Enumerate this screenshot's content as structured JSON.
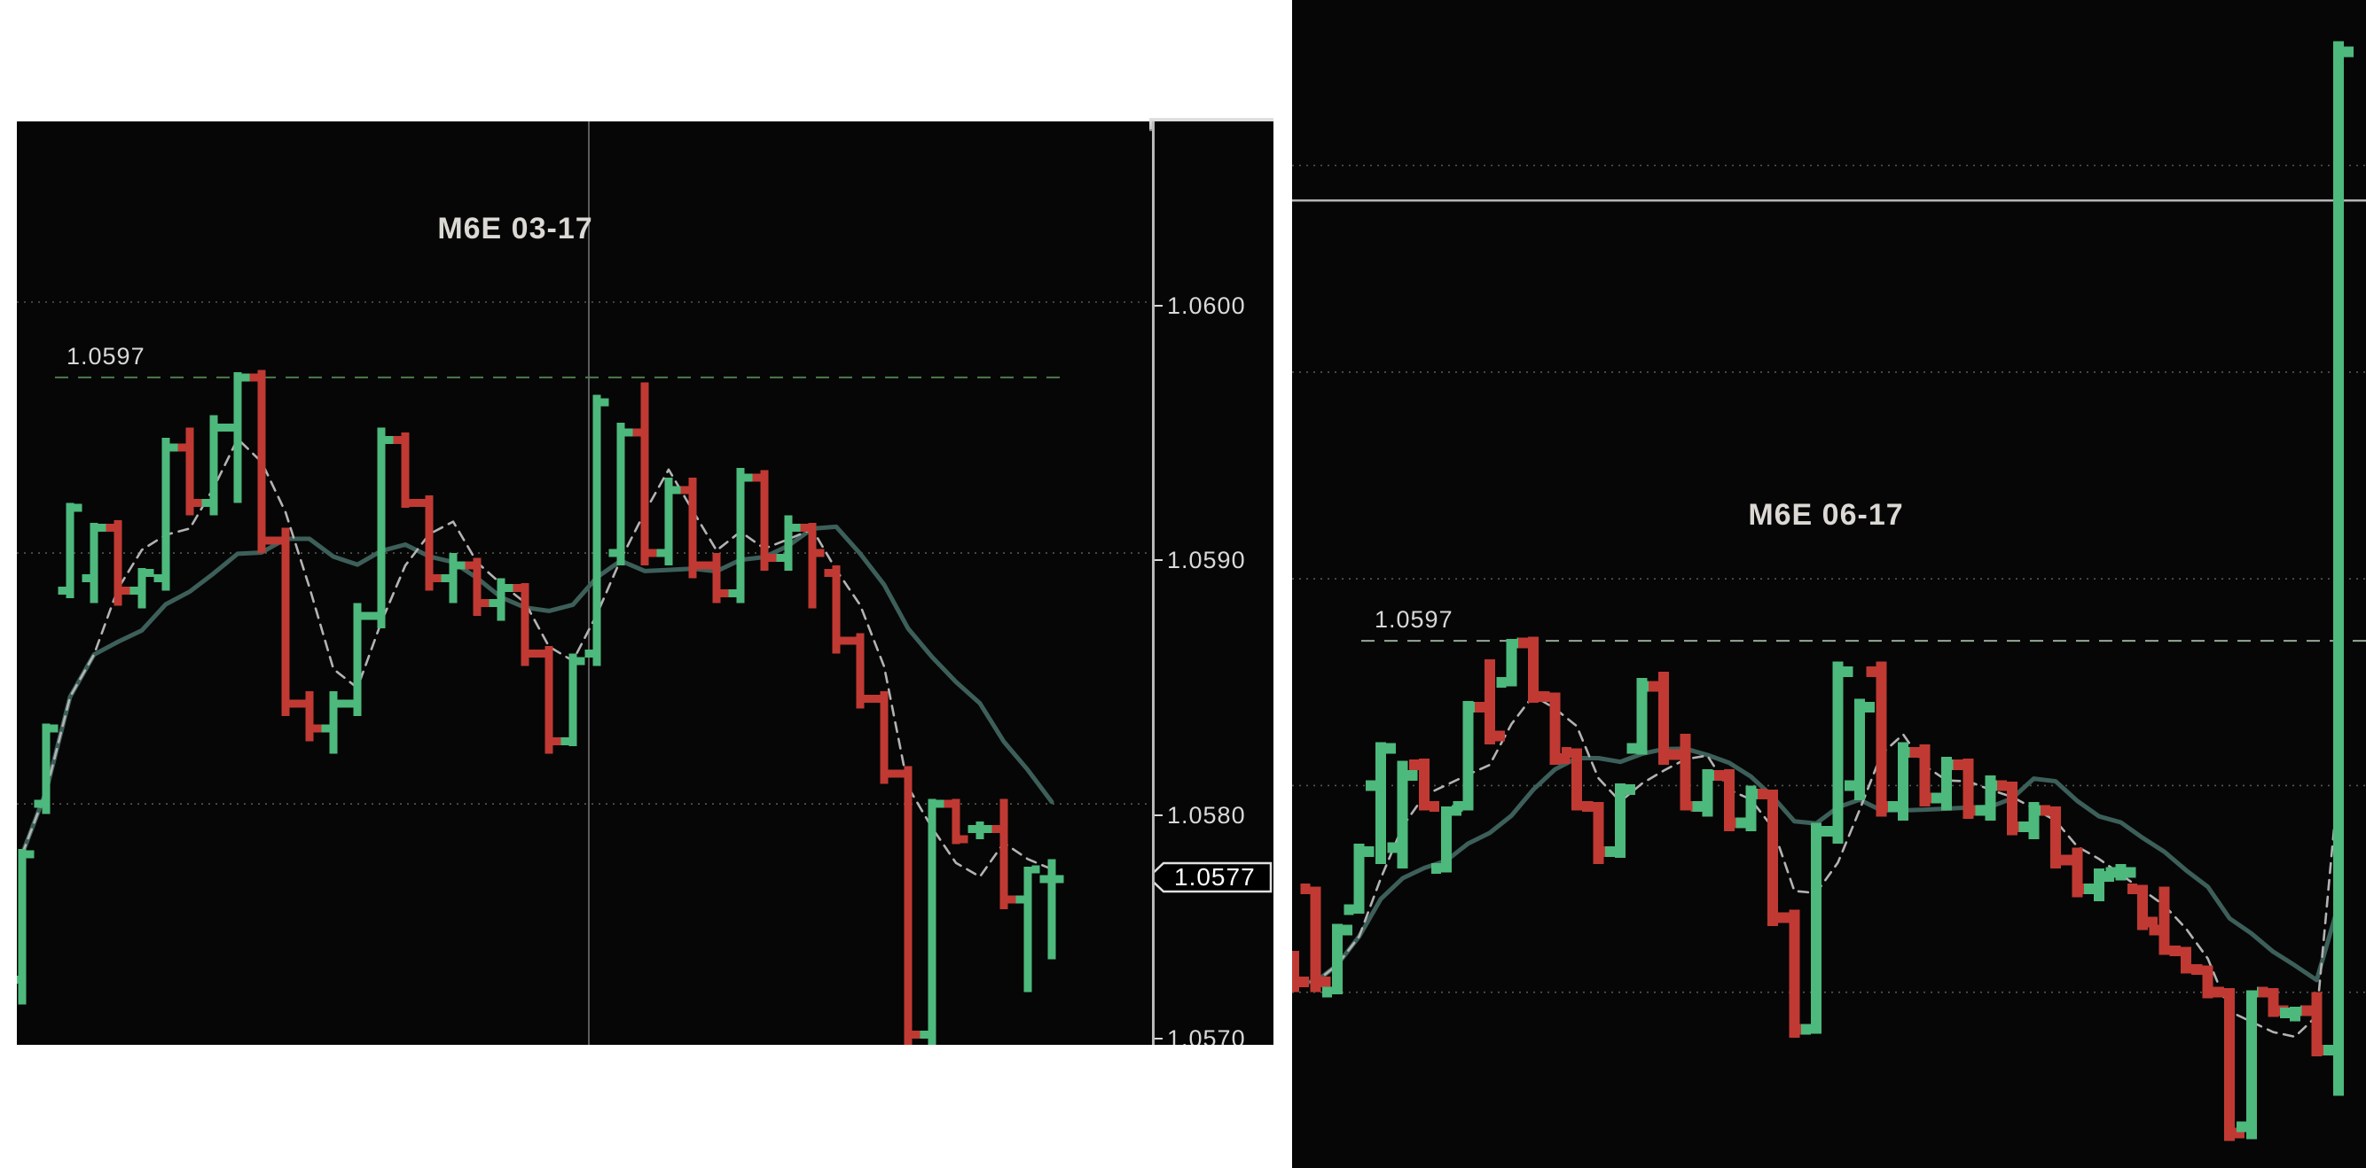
{
  "colors": {
    "background_frame": "#ffffff",
    "chart_background": "#060606",
    "up_bar": "#4db97c",
    "down_bar": "#c03a33",
    "ma_slow": "#3d5f59",
    "ma_fast": "#b3b3b3",
    "ref_line_left": "#4e7b4e",
    "ref_line_right": "#96a996",
    "gridline": "#8da08d",
    "session_line": "#d8d8d8",
    "settlement_line": "#c9c9c9",
    "axis_text": "#d9d9d9",
    "title_text": "#dcd9d4",
    "marker_fill": "#000000",
    "marker_border": "#e0e0e0"
  },
  "axis": {
    "tick_labels": [
      "1.0600",
      "1.0590",
      "1.0580"
    ],
    "cut_label": "1.0570",
    "marker_label": "1.0577"
  },
  "chart_data": [
    {
      "type": "ohlc_bar",
      "title": "M6E 03-17",
      "ref_label": "1.0597",
      "ref_price": 1.0597,
      "grid_prices": [
        1.06,
        1.059,
        1.058
      ],
      "ylim": [
        1.05704,
        1.06072
      ],
      "legend_position": "none",
      "grid": "dotted-horizontal",
      "current_price": 1.0577,
      "series": [
        {
          "name": "price_ohlc",
          "ohlc": [
            [
              1.0573,
              1.05782,
              1.0572,
              1.0578
            ],
            [
              1.058,
              1.05832,
              1.05796,
              1.0583
            ],
            [
              1.05885,
              1.0592,
              1.05882,
              1.05918
            ],
            [
              1.0589,
              1.05912,
              1.0588,
              1.0591
            ],
            [
              1.0591,
              1.05913,
              1.05879,
              1.05885
            ],
            [
              1.05885,
              1.05894,
              1.05878,
              1.05892
            ],
            [
              1.0589,
              1.05946,
              1.05885,
              1.05942
            ],
            [
              1.05942,
              1.0595,
              1.05915,
              1.0592
            ],
            [
              1.0592,
              1.05955,
              1.05915,
              1.0595
            ],
            [
              1.0595,
              1.05972,
              1.0592,
              1.0597
            ],
            [
              1.0597,
              1.05973,
              1.059,
              1.05905
            ],
            [
              1.05905,
              1.0591,
              1.05835,
              1.0584
            ],
            [
              1.0584,
              1.05845,
              1.05825,
              1.0583
            ],
            [
              1.0583,
              1.05845,
              1.0582,
              1.0584
            ],
            [
              1.0584,
              1.0588,
              1.05835,
              1.05875
            ],
            [
              1.05875,
              1.0595,
              1.0587,
              1.05945
            ],
            [
              1.05945,
              1.05948,
              1.05918,
              1.0592
            ],
            [
              1.0592,
              1.05923,
              1.05885,
              1.0589
            ],
            [
              1.0589,
              1.059,
              1.0588,
              1.05895
            ],
            [
              1.05895,
              1.05898,
              1.05875,
              1.0588
            ],
            [
              1.0588,
              1.0589,
              1.05873,
              1.05886
            ],
            [
              1.05886,
              1.05888,
              1.05855,
              1.0586
            ],
            [
              1.0586,
              1.05863,
              1.0582,
              1.05825
            ],
            [
              1.05825,
              1.0586,
              1.05823,
              1.05857
            ],
            [
              1.0586,
              1.05963,
              1.05855,
              1.0596
            ],
            [
              1.059,
              1.05952,
              1.05895,
              1.05948
            ],
            [
              1.05948,
              1.05968,
              1.05895,
              1.059
            ],
            [
              1.059,
              1.0593,
              1.05895,
              1.05925
            ],
            [
              1.05925,
              1.0593,
              1.0589,
              1.05895
            ],
            [
              1.05895,
              1.059,
              1.0588,
              1.05884
            ],
            [
              1.05884,
              1.05934,
              1.0588,
              1.0593
            ],
            [
              1.0593,
              1.05933,
              1.05893,
              1.05898
            ],
            [
              1.05898,
              1.05915,
              1.05893,
              1.0591
            ],
            [
              1.0591,
              1.05912,
              1.05878,
              1.059
            ],
            [
              1.05892,
              1.05895,
              1.0586,
              1.05865
            ],
            [
              1.05865,
              1.05868,
              1.05838,
              1.05842
            ],
            [
              1.05842,
              1.05845,
              1.05808,
              1.05812
            ],
            [
              1.05812,
              1.05815,
              1.05702,
              1.05708
            ],
            [
              1.05708,
              1.05802,
              1.05701,
              1.058
            ],
            [
              1.058,
              1.05802,
              1.05784,
              1.05786
            ],
            [
              1.0579,
              1.05793,
              1.05786,
              1.0579
            ],
            [
              1.0579,
              1.05802,
              1.05758,
              1.05762
            ],
            [
              1.05762,
              1.05775,
              1.05725,
              1.05774
            ],
            [
              1.0577,
              1.05778,
              1.05738,
              1.0577
            ]
          ]
        },
        {
          "name": "ma_fast_dashed_gray",
          "derived": "sma",
          "window": 4
        },
        {
          "name": "ma_slow_teal",
          "derived": "sma",
          "window": 11
        }
      ]
    },
    {
      "type": "ohlc_bar",
      "title": "M6E 06-17",
      "ref_label": "1.0597",
      "ref_price": 1.0597,
      "grid_prices": [
        1.062,
        1.061,
        1.06,
        1.059,
        1.058
      ],
      "settlement_price": 1.06183,
      "ylim": [
        1.05715,
        1.0628
      ],
      "legend_position": "none",
      "grid": "dotted-horizontal",
      "series": [
        {
          "name": "price_ohlc",
          "ohlc": [
            [
              1.05815,
              1.0582,
              1.058,
              1.05805
            ],
            [
              1.0585,
              1.05851,
              1.058,
              1.05805
            ],
            [
              1.058,
              1.05833,
              1.05799,
              1.0583
            ],
            [
              1.0584,
              1.05872,
              1.05838,
              1.05868
            ],
            [
              1.059,
              1.05921,
              1.05862,
              1.05918
            ],
            [
              1.0587,
              1.05912,
              1.0586,
              1.05905
            ],
            [
              1.0591,
              1.05913,
              1.05888,
              1.0589
            ],
            [
              1.0586,
              1.0589,
              1.05858,
              1.05888
            ],
            [
              1.0589,
              1.05941,
              1.05888,
              1.05938
            ],
            [
              1.05938,
              1.05961,
              1.0592,
              1.05924
            ],
            [
              1.0595,
              1.05971,
              1.05948,
              1.05969
            ],
            [
              1.05969,
              1.05972,
              1.0594,
              1.05943
            ],
            [
              1.05943,
              1.05945,
              1.0591,
              1.05913
            ],
            [
              1.05916,
              1.05918,
              1.05888,
              1.0589
            ],
            [
              1.0589,
              1.05892,
              1.05862,
              1.05868
            ],
            [
              1.05868,
              1.05901,
              1.05865,
              1.05898
            ],
            [
              1.05918,
              1.05952,
              1.05915,
              1.05948
            ],
            [
              1.05948,
              1.05955,
              1.0591,
              1.05915
            ],
            [
              1.05915,
              1.05925,
              1.05888,
              1.0589
            ],
            [
              1.0589,
              1.05908,
              1.05885,
              1.05905
            ],
            [
              1.05905,
              1.05908,
              1.05878,
              1.05882
            ],
            [
              1.05882,
              1.059,
              1.05878,
              1.05896
            ],
            [
              1.05896,
              1.05898,
              1.05832,
              1.05836
            ],
            [
              1.05836,
              1.0584,
              1.05778,
              1.05782
            ],
            [
              1.05782,
              1.05882,
              1.0578,
              1.05878
            ],
            [
              1.05878,
              1.0596,
              1.05872,
              1.05955
            ],
            [
              1.059,
              1.05942,
              1.05893,
              1.05938
            ],
            [
              1.05955,
              1.0596,
              1.05885,
              1.0589
            ],
            [
              1.0589,
              1.05921,
              1.05883,
              1.05916
            ],
            [
              1.05916,
              1.0592,
              1.0589,
              1.05894
            ],
            [
              1.05894,
              1.05914,
              1.05888,
              1.0591
            ],
            [
              1.0591,
              1.05913,
              1.05884,
              1.05888
            ],
            [
              1.05888,
              1.05905,
              1.05883,
              1.059
            ],
            [
              1.059,
              1.05902,
              1.05876,
              1.0588
            ],
            [
              1.0588,
              1.05892,
              1.05874,
              1.05888
            ],
            [
              1.05888,
              1.0589,
              1.0586,
              1.05864
            ],
            [
              1.05864,
              1.0587,
              1.05846,
              1.0585
            ],
            [
              1.0585,
              1.0586,
              1.05844,
              1.05856
            ],
            [
              1.05858,
              1.05862,
              1.05854,
              1.05858
            ],
            [
              1.0585,
              1.05852,
              1.0583,
              1.05834
            ],
            [
              1.0583,
              1.05851,
              1.05818,
              1.0582
            ],
            [
              1.0582,
              1.05822,
              1.05809,
              1.05811
            ],
            [
              1.05811,
              1.05813,
              1.05797,
              1.058
            ],
            [
              1.058,
              1.05802,
              1.05728,
              1.05732
            ],
            [
              1.05735,
              1.05801,
              1.05729,
              1.058
            ],
            [
              1.058,
              1.05802,
              1.05788,
              1.05791
            ],
            [
              1.0579,
              1.05793,
              1.05786,
              1.05791
            ],
            [
              1.05791,
              1.058,
              1.05769,
              1.05772
            ],
            [
              1.05772,
              1.0626,
              1.0575,
              1.06255
            ]
          ]
        },
        {
          "name": "ma_fast_dashed_gray",
          "derived": "sma",
          "window": 4
        },
        {
          "name": "ma_slow_teal",
          "derived": "sma",
          "window": 11
        }
      ]
    }
  ]
}
